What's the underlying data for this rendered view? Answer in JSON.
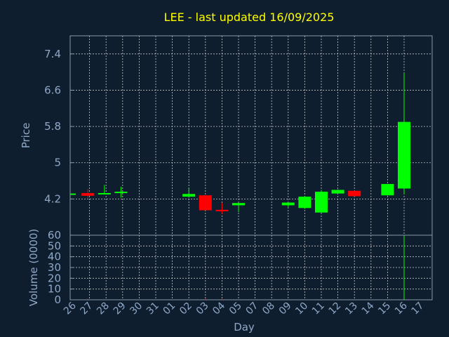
{
  "chart_data": {
    "title": "LEE - last updated 16/09/2025",
    "xlabel": "Day",
    "x_ticks": [
      "26",
      "27",
      "28",
      "29",
      "30",
      "31",
      "01",
      "02",
      "03",
      "04",
      "05",
      "07",
      "08",
      "09",
      "10",
      "11",
      "12",
      "13",
      "14",
      "15",
      "16",
      "17"
    ],
    "price_panel": {
      "type": "candlestick",
      "ylabel": "Price",
      "ylim": [
        3.4,
        7.8
      ],
      "y_ticks": [
        "7.4",
        "6.6",
        "5.8",
        "5",
        "4.2"
      ],
      "up_color": "#00ff00",
      "down_color": "#ff0000",
      "candles": [
        {
          "x": 0.0,
          "open": 4.32,
          "close": 4.32,
          "high": 4.32,
          "low": 4.32
        },
        {
          "x": 0.9,
          "open": 4.33,
          "close": 4.27,
          "high": 4.42,
          "low": 4.22
        },
        {
          "x": 1.9,
          "open": 4.31,
          "close": 4.33,
          "high": 4.51,
          "low": 4.31
        },
        {
          "x": 2.9,
          "open": 4.33,
          "close": 4.36,
          "high": 4.47,
          "low": 4.23
        },
        {
          "x": 7.0,
          "open": 4.25,
          "close": 4.31,
          "high": 4.45,
          "low": 4.23
        },
        {
          "x": 8.0,
          "open": 4.28,
          "close": 3.95,
          "high": 4.28,
          "low": 3.95
        },
        {
          "x": 9.0,
          "open": 3.96,
          "close": 3.93,
          "high": 4.11,
          "low": 3.87
        },
        {
          "x": 10.0,
          "open": 4.06,
          "close": 4.11,
          "high": 4.11,
          "low": 3.91
        },
        {
          "x": 13.0,
          "open": 4.06,
          "close": 4.12,
          "high": 4.12,
          "low": 4.02
        },
        {
          "x": 14.0,
          "open": 4.0,
          "close": 4.25,
          "high": 4.26,
          "low": 3.98
        },
        {
          "x": 15.0,
          "open": 3.9,
          "close": 4.36,
          "high": 4.4,
          "low": 3.9
        },
        {
          "x": 16.0,
          "open": 4.32,
          "close": 4.4,
          "high": 4.41,
          "low": 4.32
        },
        {
          "x": 17.0,
          "open": 4.38,
          "close": 4.26,
          "high": 4.38,
          "low": 4.26
        },
        {
          "x": 19.0,
          "open": 4.28,
          "close": 4.53,
          "high": 4.53,
          "low": 4.28
        },
        {
          "x": 20.0,
          "open": 4.43,
          "close": 5.9,
          "high": 6.98,
          "low": 4.3
        }
      ]
    },
    "volume_panel": {
      "type": "bar",
      "ylabel": "Volume (0000)",
      "ylim": [
        0,
        60
      ],
      "y_ticks": [
        "60",
        "50",
        "40",
        "30",
        "20",
        "10",
        "0"
      ],
      "bars": [
        {
          "x": 0.9,
          "value": 0.8,
          "color": "#ff0000"
        },
        {
          "x": 8.0,
          "value": 1.0,
          "color": "#ff0000"
        },
        {
          "x": 9.0,
          "value": 0.8,
          "color": "#ff0000"
        },
        {
          "x": 20.0,
          "value": 60,
          "color": "#00ff00"
        }
      ]
    }
  }
}
